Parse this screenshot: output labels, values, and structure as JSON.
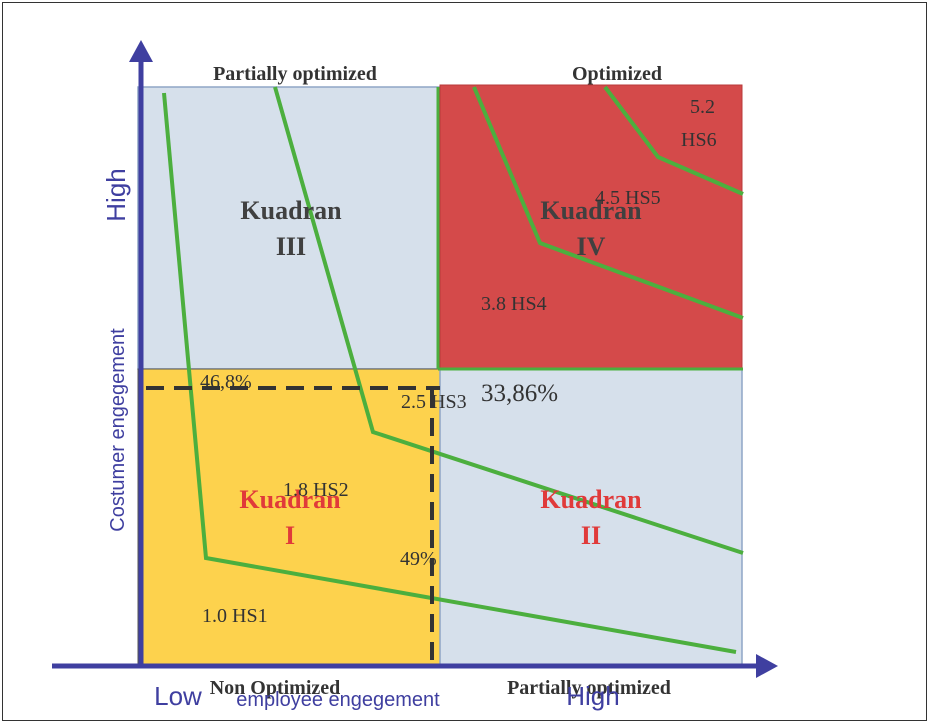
{
  "quadrants": {
    "q1": {
      "title_line1": "Kuadran",
      "title_line2": "I",
      "color": "#fdd24d"
    },
    "q2": {
      "title_line1": "Kuadran",
      "title_line2": "II",
      "color": "#d6e0eb"
    },
    "q3": {
      "title_line1": "Kuadran",
      "title_line2": "III",
      "color": "#d6e0eb"
    },
    "q4": {
      "title_line1": "Kuadran",
      "title_line2": "IV",
      "color": "#d44a4a"
    }
  },
  "labels": {
    "top_left": "Partially optimized",
    "top_right": "Optimized",
    "bottom_left": "Non Optimized",
    "bottom_right": "Partially optimized"
  },
  "axes": {
    "x_low": "Low",
    "x_title": "employee engegement",
    "x_high": "High",
    "y_title": "Costumer engegement",
    "y_high": "High",
    "axis_color": "#3f3fa0"
  },
  "points": {
    "hs1": "1.0 HS1",
    "hs2": "1.8 HS2",
    "hs3": "2.5 HS3",
    "hs4": "3.8 HS4",
    "hs5": "4.5 HS5",
    "hs6_value": "5.2",
    "hs6_label": "HS6"
  },
  "percentages": {
    "p_468": "46,8%",
    "p_3386": "33,86%",
    "p_49": "49%"
  },
  "colors": {
    "curve": "#4caf3e",
    "quadrant_title_red": "#e03a3a",
    "quadrant_title_dark": "#404040",
    "dashed": "#333333"
  }
}
